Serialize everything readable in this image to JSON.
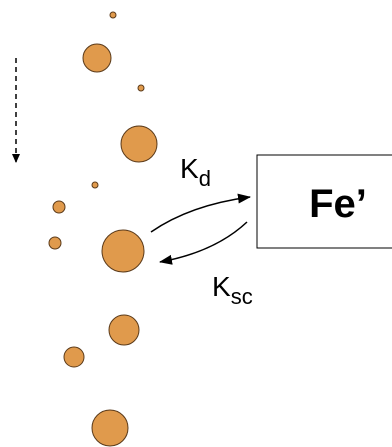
{
  "labels": {
    "kd": {
      "main": "K",
      "sub": "d"
    },
    "iron": "Fe’",
    "ksc": {
      "main": "K",
      "sub": "sc"
    }
  }
}
